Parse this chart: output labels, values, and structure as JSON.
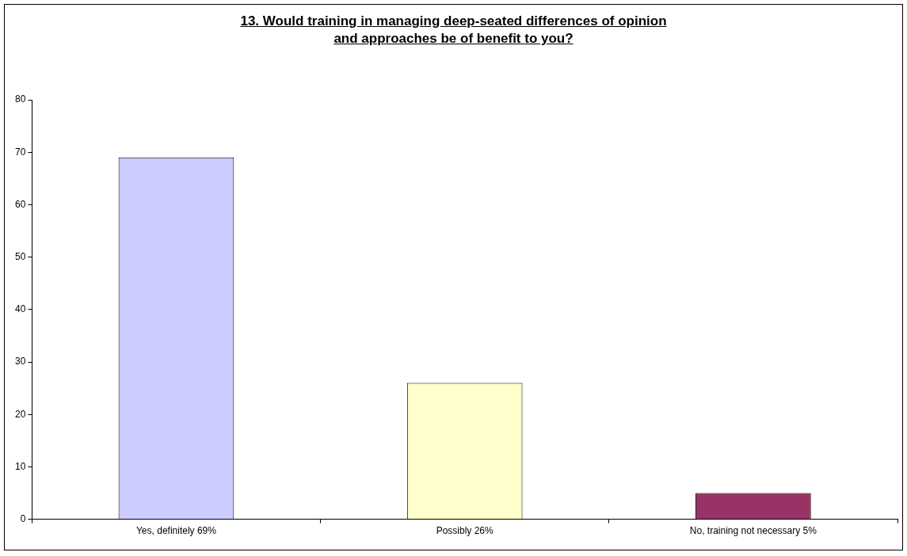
{
  "chart_data": {
    "type": "bar",
    "title": "13.  Would training in managing deep-seated differences of opinion and approaches be of benefit to you?",
    "categories": [
      "Yes, definitely 69%",
      "Possibly 26%",
      "No, training not necessary 5%"
    ],
    "values": [
      69,
      26,
      5
    ],
    "colors": [
      "#ccccff",
      "#ffffcc",
      "#993366"
    ],
    "ylim": [
      0,
      80
    ],
    "yticks": [
      0,
      10,
      20,
      30,
      40,
      50,
      60,
      70,
      80
    ],
    "grid": false,
    "legend": false
  }
}
